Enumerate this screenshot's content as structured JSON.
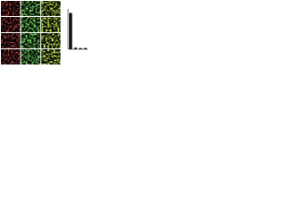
{
  "chart_data": {
    "type": "bar",
    "categories": [
      null,
      null,
      null,
      null
    ],
    "values": [
      90,
      4,
      3,
      3
    ],
    "color": "#111111",
    "ylim": [
      0,
      100
    ]
  }
}
